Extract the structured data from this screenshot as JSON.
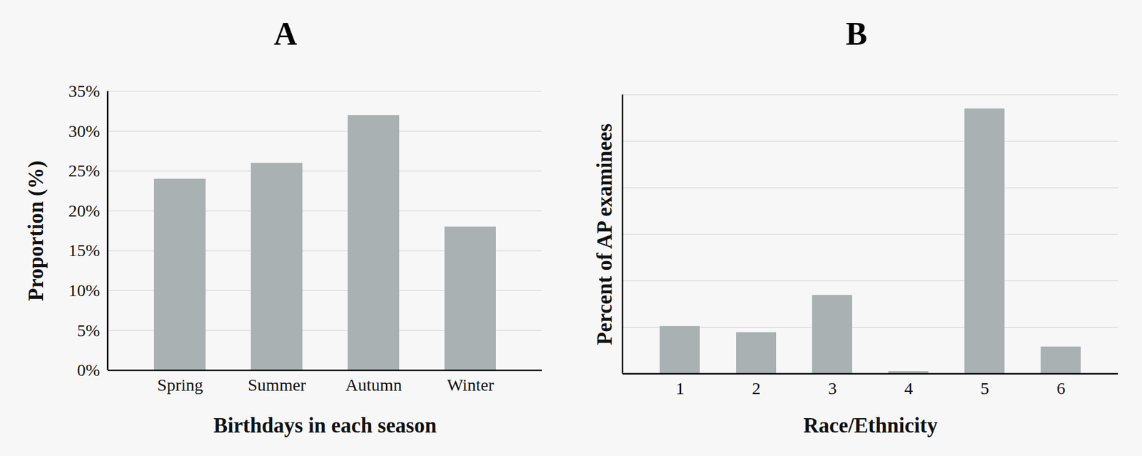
{
  "chart_data": [
    {
      "type": "bar",
      "title": "A",
      "x_label": "Birthdays in each season",
      "y_label": "Proportion (%)",
      "categories": [
        "Spring",
        "Summer",
        "Autumn",
        "Winter"
      ],
      "values": [
        24,
        26,
        32,
        18
      ],
      "color": "#a9b1b3",
      "ylim": [
        0,
        35
      ],
      "yticks": [
        {
          "value": 0,
          "label": "0%"
        },
        {
          "value": 5,
          "label": "5%"
        },
        {
          "value": 10,
          "label": "10%"
        },
        {
          "value": 15,
          "label": "15%"
        },
        {
          "value": 20,
          "label": "20%"
        },
        {
          "value": 25,
          "label": "25%"
        },
        {
          "value": 30,
          "label": "30%"
        },
        {
          "value": 35,
          "label": "35%"
        }
      ],
      "grid": true
    },
    {
      "type": "bar",
      "title": "B",
      "x_label": "Race/Ethnicity",
      "y_label": "Percent of AP examinees",
      "categories": [
        "1",
        "2",
        "3",
        "4",
        "5",
        "6"
      ],
      "values": [
        10.2,
        8.9,
        16.9,
        0.5,
        57,
        5.8
      ],
      "color": "#a9b1b3",
      "ylim": [
        0,
        60
      ],
      "yticks": [
        0,
        10,
        20,
        30,
        40,
        50,
        60
      ],
      "grid": true,
      "tick_labels": "x"
    }
  ]
}
